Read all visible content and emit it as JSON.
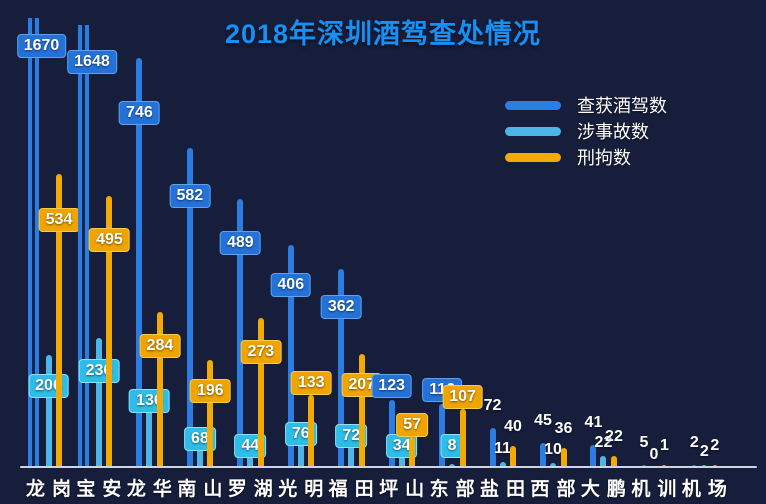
{
  "title": "2018年深圳酒驾查处情况",
  "colors": {
    "background": "#161e3c",
    "title": "#1790f5",
    "axis_line": "#cdd4e2",
    "clip_gap": "#13254d"
  },
  "legend": [
    {
      "id": "checked",
      "label": "查获酒驾数"
    },
    {
      "id": "accidents",
      "label": "涉事故数"
    },
    {
      "id": "detained",
      "label": "刑拘数"
    }
  ],
  "chart_data": {
    "type": "bar",
    "title": "2018年深圳酒驾查处情况",
    "categories": [
      "龙岗",
      "宝安",
      "龙华",
      "南山",
      "罗湖",
      "光明",
      "福田",
      "坪山",
      "东部",
      "盐田",
      "西部",
      "大鹏",
      "机训",
      "机场"
    ],
    "series": [
      {
        "id": "checked",
        "name": "查获酒驾数",
        "color": "#2b7de2",
        "box_bg": "#2472d8",
        "box_border": "#5ba3f0",
        "values": [
          1670,
          1648,
          746,
          582,
          489,
          406,
          362,
          123,
          116,
          72,
          45,
          41,
          5,
          2
        ]
      },
      {
        "id": "accidents",
        "name": "涉事故数",
        "color": "#4db6e8",
        "box_bg": "#2ebde8",
        "box_border": "#8ce2f8",
        "values": [
          206,
          236,
          136,
          68,
          44,
          76,
          72,
          34,
          8,
          11,
          10,
          22,
          0,
          2
        ]
      },
      {
        "id": "detained",
        "name": "刑拘数",
        "color": "#f2ab04",
        "box_bg": "#f0a400",
        "box_border": "#f8cc4a",
        "values": [
          534,
          495,
          284,
          196,
          273,
          133,
          207,
          57,
          107,
          40,
          36,
          22,
          1,
          2
        ]
      }
    ],
    "xlabel": "",
    "ylabel": "",
    "ylim": [
      0,
      820
    ],
    "grid": false,
    "legend_position": "upper-right",
    "notes": "龙岗/宝安 查获酒驾数 bars exceed the axis range and are clipped at the plot top; value labels for 龙岗–东部 are boxed, for 盐田–机场 plain text"
  }
}
